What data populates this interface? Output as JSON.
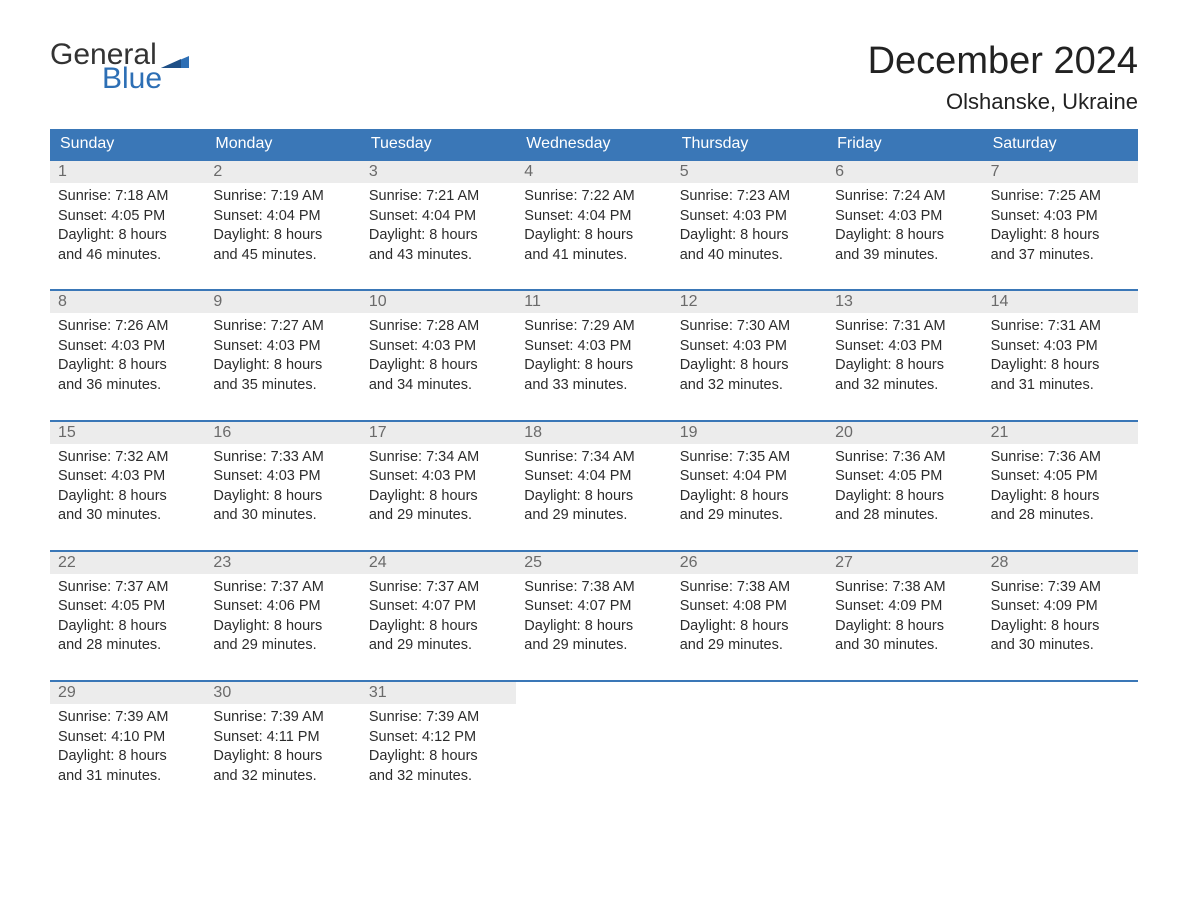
{
  "logo": {
    "general": "General",
    "blue": "Blue"
  },
  "title": "December 2024",
  "location": "Olshanske, Ukraine",
  "colors": {
    "header_bg": "#3a77b7",
    "header_text": "#ffffff",
    "daynum_bg": "#ececec",
    "daynum_text": "#6a6a6a",
    "body_text": "#2c2c2c",
    "logo_blue": "#2d6fb5",
    "rule": "#3a77b7"
  },
  "weekdays": [
    "Sunday",
    "Monday",
    "Tuesday",
    "Wednesday",
    "Thursday",
    "Friday",
    "Saturday"
  ],
  "weeks": [
    [
      {
        "n": "1",
        "sr": "Sunrise: 7:18 AM",
        "ss": "Sunset: 4:05 PM",
        "d1": "Daylight: 8 hours",
        "d2": "and 46 minutes."
      },
      {
        "n": "2",
        "sr": "Sunrise: 7:19 AM",
        "ss": "Sunset: 4:04 PM",
        "d1": "Daylight: 8 hours",
        "d2": "and 45 minutes."
      },
      {
        "n": "3",
        "sr": "Sunrise: 7:21 AM",
        "ss": "Sunset: 4:04 PM",
        "d1": "Daylight: 8 hours",
        "d2": "and 43 minutes."
      },
      {
        "n": "4",
        "sr": "Sunrise: 7:22 AM",
        "ss": "Sunset: 4:04 PM",
        "d1": "Daylight: 8 hours",
        "d2": "and 41 minutes."
      },
      {
        "n": "5",
        "sr": "Sunrise: 7:23 AM",
        "ss": "Sunset: 4:03 PM",
        "d1": "Daylight: 8 hours",
        "d2": "and 40 minutes."
      },
      {
        "n": "6",
        "sr": "Sunrise: 7:24 AM",
        "ss": "Sunset: 4:03 PM",
        "d1": "Daylight: 8 hours",
        "d2": "and 39 minutes."
      },
      {
        "n": "7",
        "sr": "Sunrise: 7:25 AM",
        "ss": "Sunset: 4:03 PM",
        "d1": "Daylight: 8 hours",
        "d2": "and 37 minutes."
      }
    ],
    [
      {
        "n": "8",
        "sr": "Sunrise: 7:26 AM",
        "ss": "Sunset: 4:03 PM",
        "d1": "Daylight: 8 hours",
        "d2": "and 36 minutes."
      },
      {
        "n": "9",
        "sr": "Sunrise: 7:27 AM",
        "ss": "Sunset: 4:03 PM",
        "d1": "Daylight: 8 hours",
        "d2": "and 35 minutes."
      },
      {
        "n": "10",
        "sr": "Sunrise: 7:28 AM",
        "ss": "Sunset: 4:03 PM",
        "d1": "Daylight: 8 hours",
        "d2": "and 34 minutes."
      },
      {
        "n": "11",
        "sr": "Sunrise: 7:29 AM",
        "ss": "Sunset: 4:03 PM",
        "d1": "Daylight: 8 hours",
        "d2": "and 33 minutes."
      },
      {
        "n": "12",
        "sr": "Sunrise: 7:30 AM",
        "ss": "Sunset: 4:03 PM",
        "d1": "Daylight: 8 hours",
        "d2": "and 32 minutes."
      },
      {
        "n": "13",
        "sr": "Sunrise: 7:31 AM",
        "ss": "Sunset: 4:03 PM",
        "d1": "Daylight: 8 hours",
        "d2": "and 32 minutes."
      },
      {
        "n": "14",
        "sr": "Sunrise: 7:31 AM",
        "ss": "Sunset: 4:03 PM",
        "d1": "Daylight: 8 hours",
        "d2": "and 31 minutes."
      }
    ],
    [
      {
        "n": "15",
        "sr": "Sunrise: 7:32 AM",
        "ss": "Sunset: 4:03 PM",
        "d1": "Daylight: 8 hours",
        "d2": "and 30 minutes."
      },
      {
        "n": "16",
        "sr": "Sunrise: 7:33 AM",
        "ss": "Sunset: 4:03 PM",
        "d1": "Daylight: 8 hours",
        "d2": "and 30 minutes."
      },
      {
        "n": "17",
        "sr": "Sunrise: 7:34 AM",
        "ss": "Sunset: 4:03 PM",
        "d1": "Daylight: 8 hours",
        "d2": "and 29 minutes."
      },
      {
        "n": "18",
        "sr": "Sunrise: 7:34 AM",
        "ss": "Sunset: 4:04 PM",
        "d1": "Daylight: 8 hours",
        "d2": "and 29 minutes."
      },
      {
        "n": "19",
        "sr": "Sunrise: 7:35 AM",
        "ss": "Sunset: 4:04 PM",
        "d1": "Daylight: 8 hours",
        "d2": "and 29 minutes."
      },
      {
        "n": "20",
        "sr": "Sunrise: 7:36 AM",
        "ss": "Sunset: 4:05 PM",
        "d1": "Daylight: 8 hours",
        "d2": "and 28 minutes."
      },
      {
        "n": "21",
        "sr": "Sunrise: 7:36 AM",
        "ss": "Sunset: 4:05 PM",
        "d1": "Daylight: 8 hours",
        "d2": "and 28 minutes."
      }
    ],
    [
      {
        "n": "22",
        "sr": "Sunrise: 7:37 AM",
        "ss": "Sunset: 4:05 PM",
        "d1": "Daylight: 8 hours",
        "d2": "and 28 minutes."
      },
      {
        "n": "23",
        "sr": "Sunrise: 7:37 AM",
        "ss": "Sunset: 4:06 PM",
        "d1": "Daylight: 8 hours",
        "d2": "and 29 minutes."
      },
      {
        "n": "24",
        "sr": "Sunrise: 7:37 AM",
        "ss": "Sunset: 4:07 PM",
        "d1": "Daylight: 8 hours",
        "d2": "and 29 minutes."
      },
      {
        "n": "25",
        "sr": "Sunrise: 7:38 AM",
        "ss": "Sunset: 4:07 PM",
        "d1": "Daylight: 8 hours",
        "d2": "and 29 minutes."
      },
      {
        "n": "26",
        "sr": "Sunrise: 7:38 AM",
        "ss": "Sunset: 4:08 PM",
        "d1": "Daylight: 8 hours",
        "d2": "and 29 minutes."
      },
      {
        "n": "27",
        "sr": "Sunrise: 7:38 AM",
        "ss": "Sunset: 4:09 PM",
        "d1": "Daylight: 8 hours",
        "d2": "and 30 minutes."
      },
      {
        "n": "28",
        "sr": "Sunrise: 7:39 AM",
        "ss": "Sunset: 4:09 PM",
        "d1": "Daylight: 8 hours",
        "d2": "and 30 minutes."
      }
    ],
    [
      {
        "n": "29",
        "sr": "Sunrise: 7:39 AM",
        "ss": "Sunset: 4:10 PM",
        "d1": "Daylight: 8 hours",
        "d2": "and 31 minutes."
      },
      {
        "n": "30",
        "sr": "Sunrise: 7:39 AM",
        "ss": "Sunset: 4:11 PM",
        "d1": "Daylight: 8 hours",
        "d2": "and 32 minutes."
      },
      {
        "n": "31",
        "sr": "Sunrise: 7:39 AM",
        "ss": "Sunset: 4:12 PM",
        "d1": "Daylight: 8 hours",
        "d2": "and 32 minutes."
      },
      null,
      null,
      null,
      null
    ]
  ]
}
